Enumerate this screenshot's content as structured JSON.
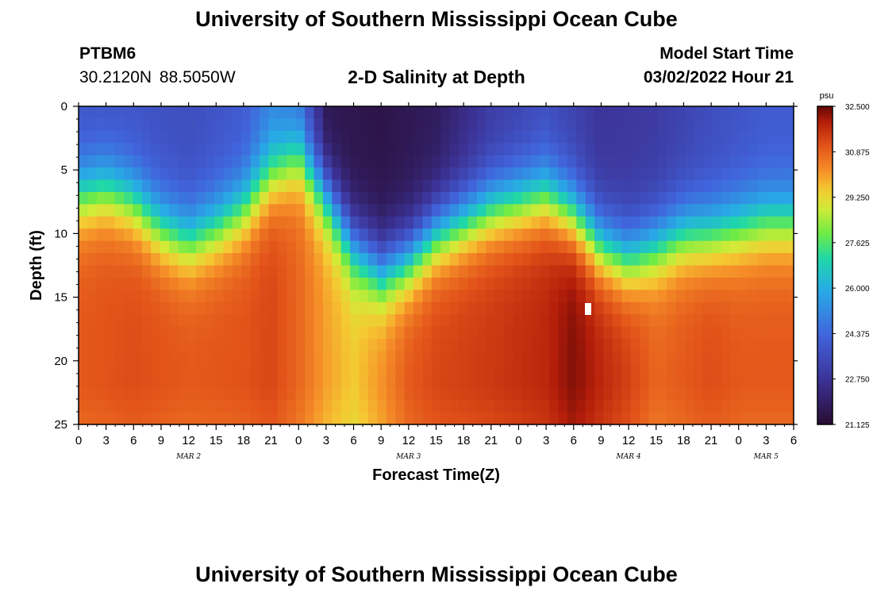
{
  "page": {
    "title_top": "University of Southern Mississippi Ocean Cube",
    "title_bottom": "University of Southern Mississippi Ocean Cube",
    "station": "PTBM6",
    "coordinates": "30.2120N  88.5050W",
    "subtitle": "2-D Salinity at Depth",
    "model_start_label": "Model Start Time",
    "model_start_value": "03/02/2022 Hour 21"
  },
  "chart_data": {
    "type": "heatmap",
    "title": "2-D Salinity at Depth",
    "xlabel": "Forecast Time(Z)",
    "ylabel": "Depth (ft)",
    "x_hours": [
      0,
      3,
      6,
      9,
      12,
      15,
      18,
      21,
      0,
      3,
      6,
      9,
      12,
      15,
      18,
      21,
      0,
      3,
      6,
      9,
      12,
      15,
      18,
      21,
      0,
      3,
      6
    ],
    "x_tick_labels": [
      "0",
      "3",
      "6",
      "9",
      "12",
      "15",
      "18",
      "21",
      "0",
      "3",
      "6",
      "9",
      "12",
      "15",
      "18",
      "21",
      "0",
      "3",
      "6",
      "9",
      "12",
      "15",
      "18",
      "21",
      "0",
      "3",
      "6"
    ],
    "x_range_hours": [
      0,
      78
    ],
    "date_labels": [
      {
        "text": "MAR 2",
        "hour": 12
      },
      {
        "text": "MAR 3",
        "hour": 36
      },
      {
        "text": "MAR 4",
        "hour": 60
      },
      {
        "text": "MAR 5",
        "hour": 75
      }
    ],
    "y_ticks": [
      0,
      5,
      10,
      15,
      20,
      25
    ],
    "y_tick_labels": [
      "0",
      "5",
      "10",
      "15",
      "20",
      "25"
    ],
    "ylim": [
      0,
      25
    ],
    "y_inverted": true,
    "colorbar": {
      "unit": "psu",
      "min": 21.125,
      "max": 32.5,
      "tick_values": [
        32.5,
        30.875,
        29.25,
        27.625,
        26.0,
        24.375,
        22.75,
        21.125
      ],
      "tick_labels": [
        "32.500",
        "30.875",
        "29.250",
        "27.625",
        "26.000",
        "24.375",
        "22.750",
        "21.125"
      ]
    },
    "grid_resolution": {
      "time_steps": 79,
      "depth_levels": 26
    },
    "halocline_depth_ft": [
      [
        0,
        7.0
      ],
      [
        3,
        6.5
      ],
      [
        6,
        7.5
      ],
      [
        9,
        9.5
      ],
      [
        12,
        10.5
      ],
      [
        15,
        9.5
      ],
      [
        18,
        8.0
      ],
      [
        21,
        5.5
      ],
      [
        24,
        4.0
      ],
      [
        27,
        7.0
      ],
      [
        30,
        11.0
      ],
      [
        33,
        13.0
      ],
      [
        36,
        12.0
      ],
      [
        39,
        10.0
      ],
      [
        42,
        9.0
      ],
      [
        45,
        8.0
      ],
      [
        48,
        7.5
      ],
      [
        51,
        7.0
      ],
      [
        54,
        8.5
      ],
      [
        57,
        11.0
      ],
      [
        60,
        12.0
      ],
      [
        63,
        11.0
      ],
      [
        66,
        10.0
      ],
      [
        69,
        10.0
      ],
      [
        72,
        9.5
      ],
      [
        75,
        9.0
      ],
      [
        78,
        9.0
      ]
    ],
    "surface_salinity_psu": [
      [
        0,
        23.8
      ],
      [
        6,
        23.8
      ],
      [
        12,
        23.6
      ],
      [
        18,
        24.0
      ],
      [
        21,
        25.0
      ],
      [
        24,
        24.5
      ],
      [
        27,
        21.6
      ],
      [
        33,
        21.5
      ],
      [
        39,
        21.8
      ],
      [
        45,
        23.0
      ],
      [
        51,
        23.6
      ],
      [
        57,
        22.8
      ],
      [
        63,
        23.0
      ],
      [
        69,
        23.6
      ],
      [
        75,
        24.0
      ],
      [
        78,
        24.0
      ]
    ],
    "deep_salinity_psu": [
      [
        0,
        31.0
      ],
      [
        6,
        31.2
      ],
      [
        12,
        31.0
      ],
      [
        18,
        31.1
      ],
      [
        21,
        31.3
      ],
      [
        24,
        30.8
      ],
      [
        27,
        30.0
      ],
      [
        30,
        29.5
      ],
      [
        33,
        30.2
      ],
      [
        36,
        31.0
      ],
      [
        39,
        31.3
      ],
      [
        45,
        31.5
      ],
      [
        51,
        31.8
      ],
      [
        54,
        32.3
      ],
      [
        57,
        31.8
      ],
      [
        60,
        31.4
      ],
      [
        63,
        30.8
      ],
      [
        66,
        31.0
      ],
      [
        69,
        31.2
      ],
      [
        72,
        31.0
      ],
      [
        78,
        31.0
      ]
    ]
  }
}
